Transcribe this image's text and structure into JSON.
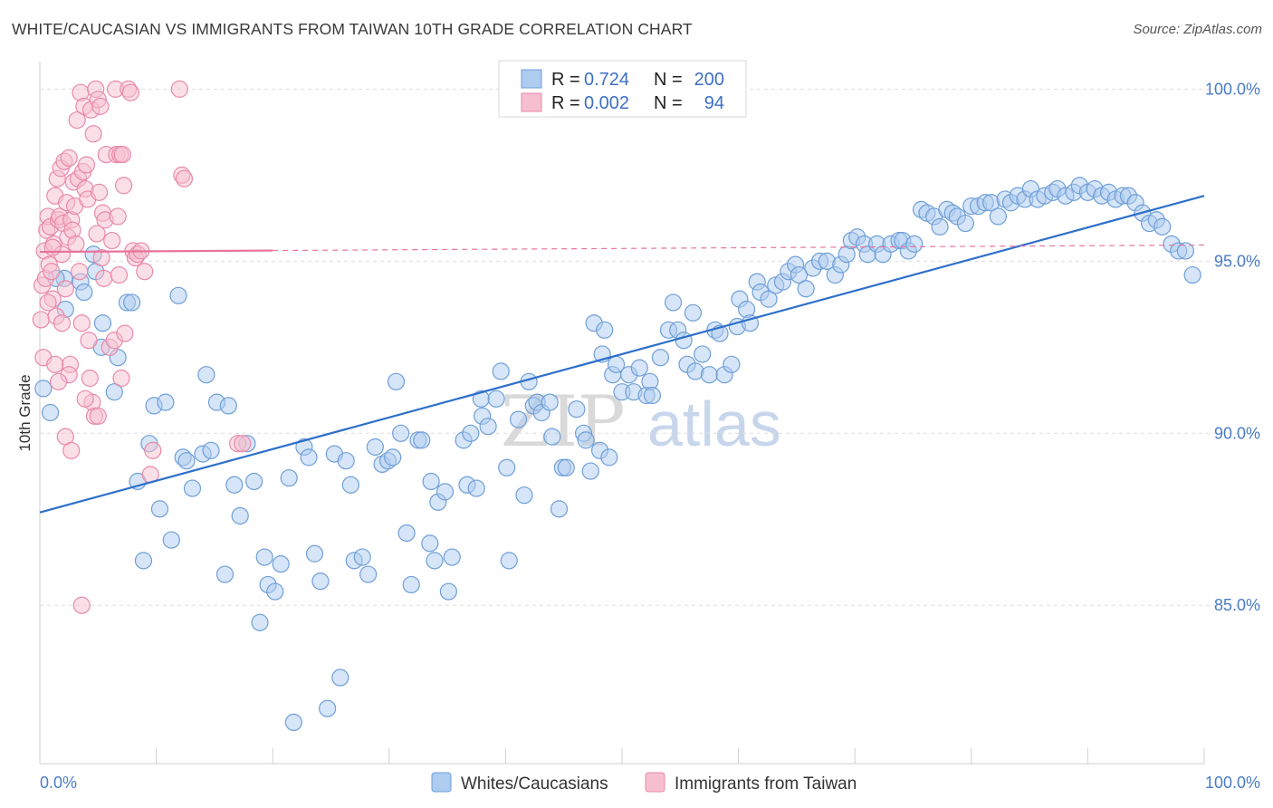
{
  "title": "WHITE/CAUCASIAN VS IMMIGRANTS FROM TAIWAN 10TH GRADE CORRELATION CHART",
  "source": "Source: ZipAtlas.com",
  "watermark": {
    "zip": "ZIP",
    "atlas": "atlas"
  },
  "colors": {
    "blue_fill": "#aecbf0",
    "blue_stroke": "#6f9fd8",
    "blue_line": "#2d6fcb",
    "pink_fill": "#f6bfd0",
    "pink_stroke": "#e98aaa",
    "pink_line": "#e8739b",
    "grid": "#dddddd",
    "tick_text": "#4a7cc7"
  },
  "legend_top": {
    "rows": [
      {
        "r_label": "R =",
        "r_value": "0.724",
        "n_label": "N =",
        "n_value": "200",
        "color": "blue"
      },
      {
        "r_label": "R =",
        "r_value": "0.002",
        "n_label": "N =",
        "n_value": "94",
        "color": "pink"
      }
    ]
  },
  "legend_bottom": [
    {
      "label": "Whites/Caucasians",
      "color": "blue"
    },
    {
      "label": "Immigrants from Taiwan",
      "color": "pink"
    }
  ],
  "chart_data": {
    "type": "scatter",
    "title": "WHITE/CAUCASIAN VS IMMIGRANTS FROM TAIWAN 10TH GRADE CORRELATION CHART",
    "xlabel": "",
    "ylabel": "10th Grade",
    "xlim": [
      0,
      100
    ],
    "ylim": [
      80.4,
      100.8
    ],
    "x_tick_labels": [
      "0.0%",
      "100.0%"
    ],
    "y_ticks": [
      85,
      90,
      95,
      100
    ],
    "y_tick_labels": [
      "85.0%",
      "90.0%",
      "95.0%",
      "100.0%"
    ],
    "grid": true,
    "legend_position": "top-center",
    "series": [
      {
        "name": "Whites/Caucasians",
        "color": "blue",
        "trend": {
          "x": [
            0,
            100
          ],
          "y": [
            87.7,
            96.9
          ]
        },
        "points": [
          [
            0.3,
            91.3
          ],
          [
            0.9,
            90.6
          ],
          [
            2.1,
            94.5
          ],
          [
            1.4,
            94.5
          ],
          [
            2.2,
            93.6
          ],
          [
            3.5,
            94.4
          ],
          [
            4.6,
            95.2
          ],
          [
            3.8,
            94.1
          ],
          [
            4.8,
            94.7
          ],
          [
            5.3,
            92.5
          ],
          [
            5.4,
            93.2
          ],
          [
            6.4,
            91.2
          ],
          [
            6.7,
            92.2
          ],
          [
            7.5,
            93.8
          ],
          [
            7.9,
            93.8
          ],
          [
            8.4,
            88.6
          ],
          [
            8.9,
            86.3
          ],
          [
            9.4,
            89.7
          ],
          [
            9.8,
            90.8
          ],
          [
            10.3,
            87.8
          ],
          [
            10.8,
            90.9
          ],
          [
            11.3,
            86.9
          ],
          [
            11.9,
            94.0
          ],
          [
            12.3,
            89.3
          ],
          [
            12.6,
            89.2
          ],
          [
            13.1,
            88.4
          ],
          [
            14.0,
            89.4
          ],
          [
            14.3,
            91.7
          ],
          [
            14.7,
            89.5
          ],
          [
            15.2,
            90.9
          ],
          [
            15.9,
            85.9
          ],
          [
            16.2,
            90.8
          ],
          [
            16.7,
            88.5
          ],
          [
            17.2,
            87.6
          ],
          [
            17.8,
            89.7
          ],
          [
            18.4,
            88.6
          ],
          [
            18.9,
            84.5
          ],
          [
            19.3,
            86.4
          ],
          [
            19.6,
            85.6
          ],
          [
            20.2,
            85.4
          ],
          [
            20.7,
            86.2
          ],
          [
            21.4,
            88.7
          ],
          [
            21.8,
            81.6
          ],
          [
            22.7,
            89.6
          ],
          [
            23.1,
            89.3
          ],
          [
            23.6,
            86.5
          ],
          [
            24.1,
            85.7
          ],
          [
            24.7,
            82.0
          ],
          [
            25.3,
            89.4
          ],
          [
            25.8,
            82.9
          ],
          [
            26.3,
            89.2
          ],
          [
            26.7,
            88.5
          ],
          [
            27.0,
            86.3
          ],
          [
            27.7,
            86.4
          ],
          [
            28.2,
            85.9
          ],
          [
            28.8,
            89.6
          ],
          [
            29.4,
            89.1
          ],
          [
            29.9,
            89.2
          ],
          [
            30.6,
            91.5
          ],
          [
            30.3,
            89.3
          ],
          [
            31.0,
            90.0
          ],
          [
            31.5,
            87.1
          ],
          [
            31.9,
            85.6
          ],
          [
            32.5,
            89.8
          ],
          [
            32.8,
            89.8
          ],
          [
            33.5,
            86.8
          ],
          [
            33.9,
            86.3
          ],
          [
            33.6,
            88.6
          ],
          [
            34.2,
            88.0
          ],
          [
            34.8,
            88.3
          ],
          [
            35.1,
            85.4
          ],
          [
            35.4,
            86.4
          ],
          [
            36.4,
            89.8
          ],
          [
            36.7,
            88.5
          ],
          [
            37.0,
            90.0
          ],
          [
            37.5,
            88.4
          ],
          [
            38.0,
            90.5
          ],
          [
            38.5,
            90.2
          ],
          [
            37.9,
            91.0
          ],
          [
            39.2,
            91.0
          ],
          [
            39.6,
            91.8
          ],
          [
            40.1,
            89.0
          ],
          [
            41.1,
            90.4
          ],
          [
            41.6,
            88.2
          ],
          [
            40.3,
            86.3
          ],
          [
            42.0,
            91.5
          ],
          [
            42.4,
            90.8
          ],
          [
            42.7,
            90.9
          ],
          [
            43.1,
            90.6
          ],
          [
            44.0,
            89.9
          ],
          [
            44.6,
            87.8
          ],
          [
            43.8,
            90.9
          ],
          [
            44.9,
            89.0
          ],
          [
            45.2,
            89.0
          ],
          [
            46.1,
            90.7
          ],
          [
            46.7,
            90.0
          ],
          [
            46.9,
            89.8
          ],
          [
            47.3,
            88.9
          ],
          [
            47.6,
            93.2
          ],
          [
            48.1,
            89.5
          ],
          [
            48.5,
            93.0
          ],
          [
            48.9,
            89.3
          ],
          [
            48.3,
            92.3
          ],
          [
            49.2,
            91.7
          ],
          [
            49.5,
            92.0
          ],
          [
            50.0,
            91.2
          ],
          [
            50.6,
            91.7
          ],
          [
            51.0,
            91.2
          ],
          [
            51.5,
            91.9
          ],
          [
            52.1,
            91.1
          ],
          [
            52.4,
            91.5
          ],
          [
            52.6,
            91.1
          ],
          [
            53.3,
            92.2
          ],
          [
            54.0,
            93.0
          ],
          [
            54.4,
            93.8
          ],
          [
            54.8,
            93.0
          ],
          [
            55.3,
            92.7
          ],
          [
            55.6,
            92.0
          ],
          [
            56.1,
            93.5
          ],
          [
            56.3,
            91.8
          ],
          [
            56.9,
            92.3
          ],
          [
            57.5,
            91.7
          ],
          [
            58.0,
            93.0
          ],
          [
            58.4,
            92.9
          ],
          [
            58.8,
            91.7
          ],
          [
            59.4,
            92.0
          ],
          [
            59.9,
            93.1
          ],
          [
            60.1,
            93.9
          ],
          [
            60.7,
            93.6
          ],
          [
            61.0,
            93.2
          ],
          [
            61.6,
            94.4
          ],
          [
            61.9,
            94.1
          ],
          [
            62.6,
            93.9
          ],
          [
            63.2,
            94.3
          ],
          [
            63.8,
            94.4
          ],
          [
            64.3,
            94.7
          ],
          [
            64.9,
            94.9
          ],
          [
            65.2,
            94.6
          ],
          [
            65.8,
            94.2
          ],
          [
            66.4,
            94.8
          ],
          [
            67.0,
            95.0
          ],
          [
            67.6,
            95.0
          ],
          [
            68.3,
            94.6
          ],
          [
            68.8,
            94.9
          ],
          [
            69.3,
            95.2
          ],
          [
            69.7,
            95.6
          ],
          [
            70.2,
            95.7
          ],
          [
            70.8,
            95.5
          ],
          [
            71.1,
            95.2
          ],
          [
            71.9,
            95.5
          ],
          [
            72.4,
            95.2
          ],
          [
            73.1,
            95.5
          ],
          [
            73.8,
            95.6
          ],
          [
            74.1,
            95.6
          ],
          [
            74.6,
            95.3
          ],
          [
            75.1,
            95.5
          ],
          [
            75.7,
            96.5
          ],
          [
            76.2,
            96.4
          ],
          [
            76.8,
            96.3
          ],
          [
            77.3,
            96.0
          ],
          [
            77.9,
            96.5
          ],
          [
            78.4,
            96.4
          ],
          [
            78.8,
            96.3
          ],
          [
            79.5,
            96.1
          ],
          [
            80.0,
            96.6
          ],
          [
            80.6,
            96.6
          ],
          [
            81.2,
            96.7
          ],
          [
            81.7,
            96.7
          ],
          [
            82.3,
            96.3
          ],
          [
            82.9,
            96.8
          ],
          [
            83.4,
            96.7
          ],
          [
            84.0,
            96.9
          ],
          [
            84.6,
            96.8
          ],
          [
            85.1,
            97.1
          ],
          [
            85.7,
            96.8
          ],
          [
            86.3,
            96.9
          ],
          [
            87.0,
            97.0
          ],
          [
            87.4,
            97.1
          ],
          [
            88.1,
            96.9
          ],
          [
            88.8,
            97.0
          ],
          [
            89.3,
            97.2
          ],
          [
            90.0,
            97.0
          ],
          [
            90.6,
            97.1
          ],
          [
            91.2,
            96.9
          ],
          [
            91.8,
            97.0
          ],
          [
            92.4,
            96.8
          ],
          [
            93.0,
            96.9
          ],
          [
            93.5,
            96.9
          ],
          [
            94.1,
            96.7
          ],
          [
            94.7,
            96.4
          ],
          [
            95.3,
            96.1
          ],
          [
            95.9,
            96.2
          ],
          [
            96.4,
            96.0
          ],
          [
            97.2,
            95.5
          ],
          [
            97.8,
            95.3
          ],
          [
            98.4,
            95.3
          ],
          [
            99.0,
            94.6
          ]
        ]
      },
      {
        "name": "Immigrants from Taiwan",
        "color": "pink",
        "trend": {
          "x": [
            0,
            100
          ],
          "y": [
            95.27,
            95.47
          ]
        },
        "trend_solid_until_x": 20,
        "points": [
          [
            0.1,
            93.3
          ],
          [
            0.2,
            94.3
          ],
          [
            0.3,
            92.2
          ],
          [
            0.4,
            95.3
          ],
          [
            0.5,
            94.5
          ],
          [
            0.6,
            95.9
          ],
          [
            0.7,
            96.3
          ],
          [
            0.8,
            94.9
          ],
          [
            0.9,
            96.0
          ],
          [
            1.0,
            94.7
          ],
          [
            1.1,
            93.9
          ],
          [
            1.2,
            95.5
          ],
          [
            1.3,
            96.9
          ],
          [
            1.4,
            93.4
          ],
          [
            1.5,
            97.4
          ],
          [
            1.6,
            96.2
          ],
          [
            1.7,
            96.3
          ],
          [
            1.8,
            97.7
          ],
          [
            1.9,
            95.2
          ],
          [
            2.0,
            96.1
          ],
          [
            2.1,
            97.9
          ],
          [
            2.2,
            94.2
          ],
          [
            2.3,
            96.7
          ],
          [
            2.4,
            95.7
          ],
          [
            2.5,
            98.0
          ],
          [
            2.6,
            92.0
          ],
          [
            2.7,
            96.2
          ],
          [
            2.8,
            95.9
          ],
          [
            2.9,
            97.3
          ],
          [
            3.0,
            96.6
          ],
          [
            3.1,
            95.5
          ],
          [
            3.2,
            99.1
          ],
          [
            3.3,
            97.4
          ],
          [
            3.4,
            94.7
          ],
          [
            3.5,
            99.9
          ],
          [
            3.6,
            93.2
          ],
          [
            3.7,
            97.6
          ],
          [
            3.8,
            99.5
          ],
          [
            3.9,
            97.1
          ],
          [
            4.0,
            97.8
          ],
          [
            4.1,
            96.8
          ],
          [
            4.2,
            92.7
          ],
          [
            4.3,
            91.6
          ],
          [
            4.4,
            99.4
          ],
          [
            4.5,
            90.9
          ],
          [
            4.6,
            98.7
          ],
          [
            4.7,
            90.5
          ],
          [
            4.8,
            100.0
          ],
          [
            4.9,
            95.8
          ],
          [
            5.0,
            99.7
          ],
          [
            5.1,
            97.0
          ],
          [
            5.2,
            99.5
          ],
          [
            5.3,
            95.1
          ],
          [
            5.4,
            96.4
          ],
          [
            5.5,
            94.5
          ],
          [
            5.6,
            96.2
          ],
          [
            5.7,
            98.1
          ],
          [
            6.0,
            92.5
          ],
          [
            6.2,
            95.6
          ],
          [
            6.4,
            92.7
          ],
          [
            6.5,
            100.0
          ],
          [
            6.6,
            98.1
          ],
          [
            6.7,
            96.3
          ],
          [
            6.8,
            94.6
          ],
          [
            6.9,
            98.1
          ],
          [
            7.0,
            91.6
          ],
          [
            7.1,
            98.1
          ],
          [
            7.2,
            97.2
          ],
          [
            7.3,
            92.9
          ],
          [
            7.6,
            100.0
          ],
          [
            7.8,
            99.9
          ],
          [
            8.0,
            95.3
          ],
          [
            8.2,
            95.1
          ],
          [
            8.4,
            95.2
          ],
          [
            8.7,
            95.3
          ],
          [
            9.0,
            94.7
          ],
          [
            9.5,
            88.8
          ],
          [
            9.7,
            89.5
          ],
          [
            12.0,
            100.0
          ],
          [
            12.2,
            97.5
          ],
          [
            12.4,
            97.4
          ],
          [
            17.0,
            89.7
          ],
          [
            17.4,
            89.7
          ],
          [
            3.6,
            85.0
          ],
          [
            2.2,
            89.9
          ],
          [
            2.7,
            89.5
          ],
          [
            1.3,
            92.0
          ],
          [
            3.9,
            91.0
          ],
          [
            2.5,
            91.7
          ],
          [
            1.6,
            91.5
          ],
          [
            0.7,
            93.8
          ],
          [
            1.9,
            93.2
          ],
          [
            5.0,
            90.5
          ],
          [
            1.1,
            95.4
          ]
        ]
      }
    ]
  }
}
